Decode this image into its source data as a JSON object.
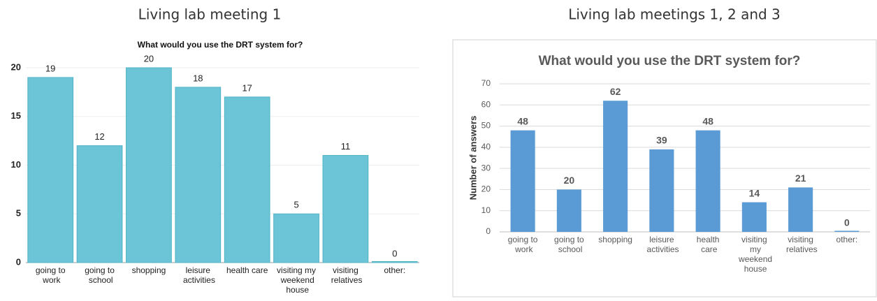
{
  "chart_data": [
    {
      "type": "bar",
      "heading": "Living lab meeting 1",
      "title": "What would you use the DRT system for?",
      "categories": [
        "going to work",
        "going to school",
        "shopping",
        "leisure activities",
        "health care",
        "visiting my weekend house",
        "visiting relatives",
        "other:"
      ],
      "values": [
        19,
        12,
        20,
        18,
        17,
        5,
        11,
        0
      ],
      "color": "#6cc5d6",
      "ylim": [
        0,
        20
      ],
      "yticks": [
        0,
        5,
        10,
        15,
        20
      ],
      "grid": true
    },
    {
      "type": "bar",
      "heading": "Living lab meetings 1, 2 and 3",
      "title": "What would you use the DRT system for?",
      "ylabel": "Number of answers",
      "categories": [
        "going to work",
        "going to school",
        "shopping",
        "leisure activities",
        "health care",
        "visiting my weekend house",
        "visiting relatives",
        "other:"
      ],
      "values": [
        48,
        20,
        62,
        39,
        48,
        14,
        21,
        0
      ],
      "color": "#5b9bd5",
      "ylim": [
        0,
        70
      ],
      "yticks": [
        0,
        10,
        20,
        30,
        40,
        50,
        60,
        70
      ],
      "grid": true
    }
  ]
}
